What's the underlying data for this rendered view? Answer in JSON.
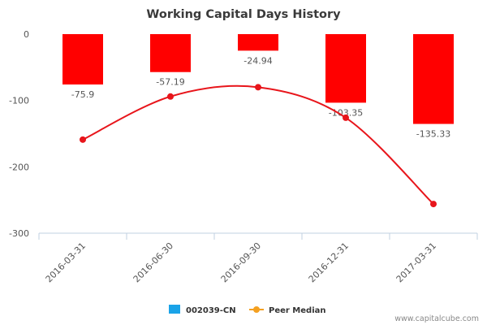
{
  "chart_data": {
    "type": "bar",
    "title": "Working Capital Days History",
    "categories": [
      "2016-03-31",
      "2016-06-30",
      "2016-09-30",
      "2016-12-31",
      "2017-03-31"
    ],
    "series": [
      {
        "name": "002039-CN",
        "type": "bar",
        "values": [
          -75.9,
          -57.19,
          -24.94,
          -103.35,
          -135.33
        ],
        "data_labels": [
          "-75.9",
          "-57.19",
          "-24.94",
          "-103.35",
          "-135.33"
        ],
        "color": "#ff0000",
        "legend_color": "#1aa3e8"
      },
      {
        "name": "Peer Median",
        "type": "line",
        "smooth": true,
        "values": [
          -159,
          -94,
          -80,
          -126,
          -256
        ],
        "color": "#e8151b",
        "legend_color": "#f4a020"
      }
    ],
    "yticks": [
      0,
      -100,
      -200,
      -300
    ],
    "ylim": [
      -300,
      0
    ],
    "xlabel": "",
    "ylabel": "",
    "grid": false,
    "legend_position": "bottom-center"
  },
  "credit": "www.capitalcube.com"
}
